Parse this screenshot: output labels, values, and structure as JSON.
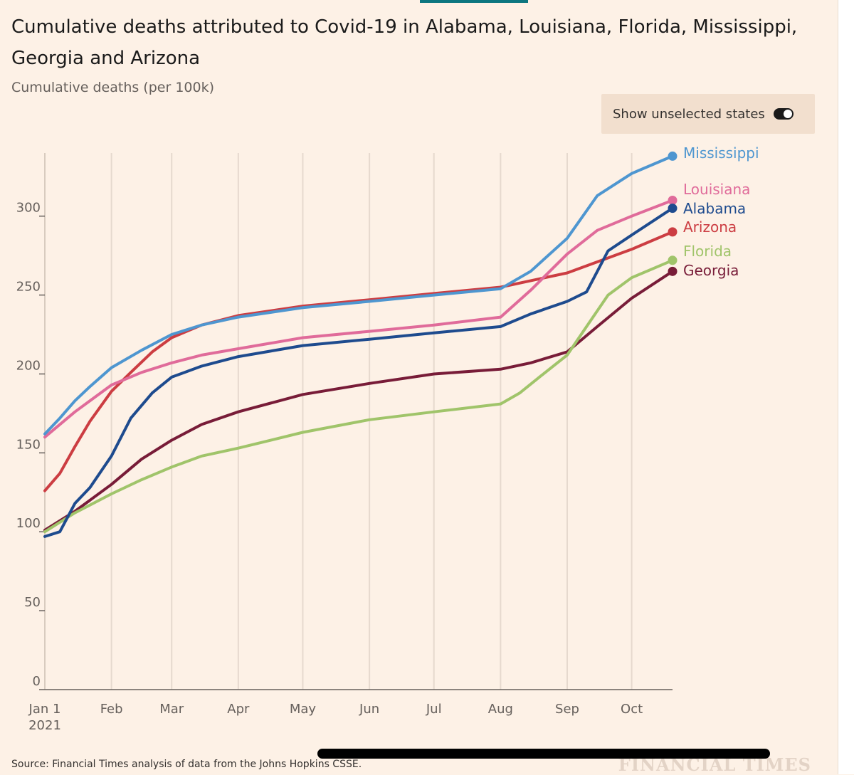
{
  "header": {
    "title": "Cumulative deaths attributed to Covid-19 in Alabama, Louisiana, Florida, Mississippi, Georgia and Arizona",
    "subtitle": "Cumulative deaths (per 100k)"
  },
  "toggle": {
    "label": "Show unselected states",
    "on": true
  },
  "footer": {
    "source": "Source: Financial Times analysis of data from the Johns Hopkins CSSE.",
    "logo": "FINANCIAL TIMES"
  },
  "chart_data": {
    "type": "line",
    "title": "Cumulative deaths attributed to Covid-19 in Alabama, Louisiana, Florida, Mississippi, Georgia and Arizona",
    "ylabel": "Cumulative deaths (per 100k)",
    "xlabel": "",
    "xlim": [
      "2021-01-01",
      "2021-10-20"
    ],
    "ylim": [
      0,
      340
    ],
    "yticks": [
      0,
      50,
      100,
      150,
      200,
      250,
      300
    ],
    "xticks": [
      {
        "date": "2021-01-01",
        "label": "Jan 1",
        "sublabel": "2021"
      },
      {
        "date": "2021-02-01",
        "label": "Feb"
      },
      {
        "date": "2021-03-01",
        "label": "Mar"
      },
      {
        "date": "2021-04-01",
        "label": "Apr"
      },
      {
        "date": "2021-05-01",
        "label": "May"
      },
      {
        "date": "2021-06-01",
        "label": "Jun"
      },
      {
        "date": "2021-07-01",
        "label": "Jul"
      },
      {
        "date": "2021-08-01",
        "label": "Aug"
      },
      {
        "date": "2021-09-01",
        "label": "Sep"
      },
      {
        "date": "2021-10-01",
        "label": "Oct"
      }
    ],
    "grid": true,
    "legend": "end-of-line labels",
    "series": [
      {
        "name": "Mississippi",
        "color": "#4e96d0",
        "x": [
          "2021-01-01",
          "2021-01-08",
          "2021-01-15",
          "2021-01-22",
          "2021-02-01",
          "2021-02-15",
          "2021-03-01",
          "2021-03-15",
          "2021-04-01",
          "2021-05-01",
          "2021-06-01",
          "2021-07-01",
          "2021-08-01",
          "2021-08-15",
          "2021-09-01",
          "2021-09-15",
          "2021-10-01",
          "2021-10-20"
        ],
        "values": [
          162,
          172,
          183,
          192,
          204,
          215,
          225,
          231,
          236,
          242,
          246,
          250,
          254,
          265,
          286,
          313,
          327,
          338
        ]
      },
      {
        "name": "Louisiana",
        "color": "#e06b9a",
        "x": [
          "2021-01-01",
          "2021-01-15",
          "2021-02-01",
          "2021-02-15",
          "2021-03-01",
          "2021-03-15",
          "2021-04-01",
          "2021-05-01",
          "2021-06-01",
          "2021-07-01",
          "2021-08-01",
          "2021-08-15",
          "2021-09-01",
          "2021-09-15",
          "2021-10-01",
          "2021-10-20"
        ],
        "values": [
          160,
          176,
          193,
          201,
          207,
          212,
          216,
          223,
          227,
          231,
          236,
          253,
          276,
          291,
          300,
          310
        ]
      },
      {
        "name": "Alabama",
        "color": "#1e4b8e",
        "x": [
          "2021-01-01",
          "2021-01-08",
          "2021-01-15",
          "2021-01-22",
          "2021-02-01",
          "2021-02-10",
          "2021-02-20",
          "2021-03-01",
          "2021-03-15",
          "2021-04-01",
          "2021-05-01",
          "2021-06-01",
          "2021-07-01",
          "2021-08-01",
          "2021-08-15",
          "2021-09-01",
          "2021-09-10",
          "2021-09-20",
          "2021-10-01",
          "2021-10-20"
        ],
        "values": [
          97,
          100,
          118,
          128,
          148,
          172,
          188,
          198,
          205,
          211,
          218,
          222,
          226,
          230,
          238,
          246,
          252,
          278,
          288,
          305
        ]
      },
      {
        "name": "Arizona",
        "color": "#cc3d42",
        "x": [
          "2021-01-01",
          "2021-01-08",
          "2021-01-15",
          "2021-01-22",
          "2021-02-01",
          "2021-02-10",
          "2021-02-20",
          "2021-03-01",
          "2021-03-15",
          "2021-04-01",
          "2021-05-01",
          "2021-06-01",
          "2021-07-01",
          "2021-08-01",
          "2021-09-01",
          "2021-10-01",
          "2021-10-20"
        ],
        "values": [
          126,
          137,
          154,
          170,
          189,
          201,
          214,
          223,
          231,
          237,
          243,
          247,
          251,
          255,
          264,
          279,
          290
        ]
      },
      {
        "name": "Florida",
        "color": "#a0c46a",
        "x": [
          "2021-01-01",
          "2021-01-15",
          "2021-02-01",
          "2021-02-15",
          "2021-03-01",
          "2021-03-15",
          "2021-04-01",
          "2021-05-01",
          "2021-06-01",
          "2021-07-01",
          "2021-08-01",
          "2021-08-10",
          "2021-08-20",
          "2021-09-01",
          "2021-09-10",
          "2021-09-20",
          "2021-10-01",
          "2021-10-20"
        ],
        "values": [
          100,
          112,
          124,
          133,
          141,
          148,
          153,
          163,
          171,
          176,
          181,
          188,
          199,
          212,
          230,
          250,
          261,
          272
        ]
      },
      {
        "name": "Georgia",
        "color": "#781c38",
        "x": [
          "2021-01-01",
          "2021-01-15",
          "2021-02-01",
          "2021-02-15",
          "2021-03-01",
          "2021-03-15",
          "2021-04-01",
          "2021-05-01",
          "2021-06-01",
          "2021-07-01",
          "2021-08-01",
          "2021-08-15",
          "2021-09-01",
          "2021-09-15",
          "2021-10-01",
          "2021-10-20"
        ],
        "values": [
          101,
          113,
          130,
          146,
          158,
          168,
          176,
          187,
          194,
          200,
          203,
          207,
          214,
          230,
          248,
          265
        ]
      }
    ]
  }
}
